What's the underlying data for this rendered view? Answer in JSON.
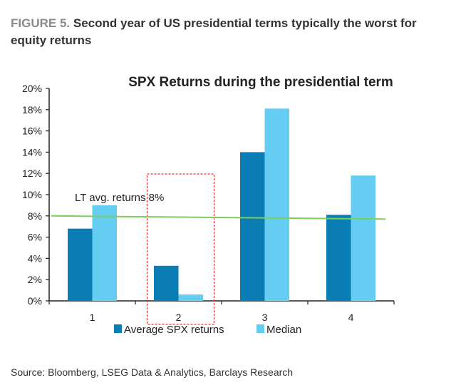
{
  "figure": {
    "label": "FIGURE 5.",
    "caption": "Second year of US presidential terms typically the worst for equity returns",
    "source": "Source: Bloomberg, LSEG Data & Analytics, Barclays Research"
  },
  "chart_data": {
    "type": "bar",
    "title": "SPX Returns during the presidential term",
    "categories": [
      "1",
      "2",
      "3",
      "4"
    ],
    "series": [
      {
        "name": "Average SPX returns",
        "color": "#0a7db5",
        "values": [
          6.8,
          3.3,
          14.0,
          8.1
        ]
      },
      {
        "name": "Median",
        "color": "#66cdf2",
        "values": [
          9.0,
          0.6,
          18.1,
          11.8
        ]
      }
    ],
    "ylim": [
      0,
      20
    ],
    "yticks": [
      0,
      2,
      4,
      6,
      8,
      10,
      12,
      14,
      16,
      18,
      20
    ],
    "ytick_labels": [
      "0%",
      "2%",
      "4%",
      "6%",
      "8%",
      "10%",
      "12%",
      "14%",
      "16%",
      "18%",
      "20%"
    ],
    "xlabel": "",
    "ylabel": "",
    "legend": "bottom",
    "reference_line": {
      "label": "LT avg. returns 8%",
      "start": 8.0,
      "end": 7.7,
      "color": "#7ccf5a"
    },
    "highlight": {
      "category": "2",
      "color": "#ee3333",
      "style": "dashed"
    }
  }
}
